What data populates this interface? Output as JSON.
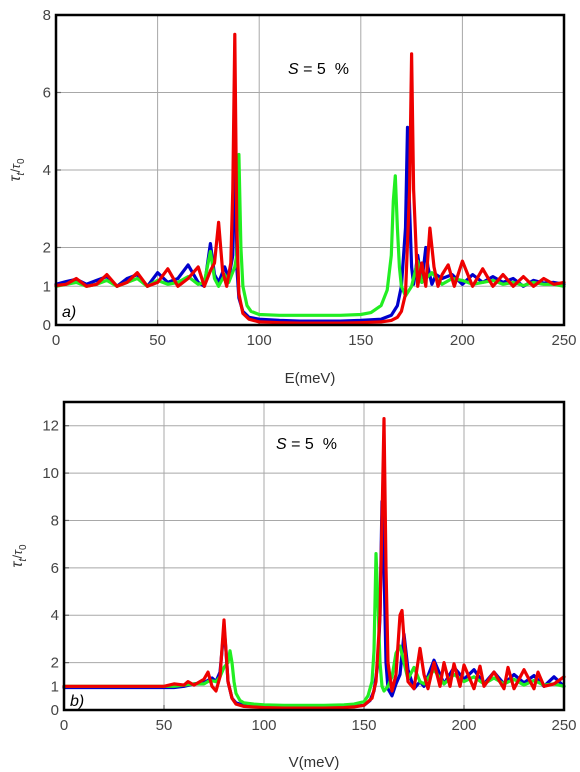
{
  "chart_data": [
    {
      "type": "line",
      "panel_label": "a)",
      "annotation": "S = 5  %",
      "annotation_parts": {
        "symbol": "S",
        "rest": " = 5  %"
      },
      "xlabel": "E(meV)",
      "ylabel_parts": {
        "main": "τ",
        "sub1": "t",
        "sep": "/",
        "main2": "τ",
        "sub2": "0"
      },
      "xlim": [
        0,
        250
      ],
      "ylim": [
        0,
        8
      ],
      "xticks": [
        0,
        50,
        100,
        150,
        200,
        250
      ],
      "yticks": [
        0,
        1,
        2,
        4,
        6,
        8
      ],
      "grid": true,
      "series": [
        {
          "color": "#0000cc",
          "x": [
            0,
            5,
            10,
            15,
            20,
            25,
            30,
            35,
            40,
            45,
            50,
            55,
            60,
            65,
            70,
            73,
            76,
            78,
            80,
            83,
            85,
            87,
            88,
            89,
            90,
            92,
            95,
            100,
            110,
            120,
            130,
            140,
            150,
            160,
            165,
            168,
            170,
            172,
            173,
            174,
            175,
            176,
            178,
            180,
            182,
            183,
            185,
            187,
            190,
            195,
            200,
            205,
            210,
            215,
            220,
            225,
            230,
            235,
            240,
            245,
            250
          ],
          "y": [
            1.05,
            1.12,
            1.18,
            1.05,
            1.15,
            1.25,
            1.0,
            1.2,
            1.3,
            1.0,
            1.35,
            1.1,
            1.2,
            1.55,
            1.1,
            1.0,
            2.1,
            1.3,
            1.1,
            1.5,
            1.2,
            1.8,
            5.5,
            1.5,
            0.7,
            0.35,
            0.2,
            0.15,
            0.12,
            0.1,
            0.1,
            0.1,
            0.12,
            0.15,
            0.25,
            0.5,
            1.0,
            2.5,
            5.1,
            3.0,
            1.5,
            1.05,
            1.8,
            1.1,
            2.0,
            1.5,
            1.05,
            1.3,
            1.2,
            1.3,
            1.05,
            1.3,
            1.1,
            1.25,
            1.1,
            1.2,
            1.0,
            1.15,
            1.08,
            1.1,
            1.05
          ]
        },
        {
          "color": "#22ee22",
          "x": [
            0,
            5,
            10,
            15,
            20,
            25,
            30,
            35,
            40,
            45,
            50,
            55,
            60,
            65,
            70,
            73,
            76,
            78,
            80,
            83,
            85,
            88,
            89,
            90,
            91,
            92,
            94,
            96,
            100,
            110,
            120,
            130,
            140,
            150,
            155,
            160,
            163,
            165,
            166,
            167,
            168,
            169,
            170,
            172,
            175,
            178,
            180,
            182,
            185,
            190,
            195,
            200,
            205,
            210,
            215,
            220,
            225,
            230,
            235,
            240,
            245,
            250
          ],
          "y": [
            1.0,
            1.05,
            1.1,
            1.0,
            1.05,
            1.15,
            1.0,
            1.1,
            1.2,
            1.0,
            1.15,
            1.05,
            1.1,
            1.25,
            1.05,
            1.1,
            1.9,
            1.2,
            1.0,
            1.3,
            1.1,
            1.5,
            1.8,
            4.4,
            2.0,
            1.0,
            0.5,
            0.35,
            0.27,
            0.25,
            0.25,
            0.25,
            0.25,
            0.27,
            0.32,
            0.5,
            0.9,
            1.8,
            3.2,
            3.85,
            2.5,
            1.5,
            1.0,
            0.75,
            1.0,
            1.65,
            1.1,
            1.2,
            1.35,
            1.05,
            1.2,
            1.15,
            1.05,
            1.1,
            1.15,
            1.05,
            1.1,
            1.02,
            1.1,
            1.05,
            1.05,
            1.0
          ]
        },
        {
          "color": "#ee0000",
          "x": [
            0,
            5,
            10,
            15,
            20,
            25,
            30,
            35,
            40,
            45,
            50,
            55,
            60,
            65,
            70,
            73,
            76,
            78,
            80,
            82,
            84,
            86,
            87,
            88,
            89,
            90,
            92,
            95,
            100,
            110,
            120,
            130,
            140,
            150,
            160,
            165,
            168,
            170,
            172,
            174,
            175,
            176,
            178,
            180,
            182,
            184,
            186,
            188,
            190,
            193,
            196,
            200,
            205,
            210,
            215,
            220,
            225,
            230,
            235,
            240,
            245,
            250
          ],
          "y": [
            1.02,
            1.05,
            1.2,
            1.0,
            1.05,
            1.3,
            1.0,
            1.1,
            1.35,
            1.0,
            1.1,
            1.45,
            1.0,
            1.2,
            1.5,
            1.0,
            1.4,
            1.6,
            2.65,
            1.4,
            1.0,
            1.6,
            3.5,
            7.5,
            2.5,
            0.8,
            0.3,
            0.15,
            0.08,
            0.06,
            0.05,
            0.05,
            0.05,
            0.06,
            0.08,
            0.12,
            0.2,
            0.35,
            0.8,
            3.5,
            7.0,
            3.5,
            1.0,
            1.6,
            1.0,
            2.5,
            1.5,
            1.0,
            1.3,
            1.55,
            1.0,
            1.65,
            1.0,
            1.45,
            1.0,
            1.3,
            1.0,
            1.25,
            1.0,
            1.2,
            1.05,
            1.1
          ]
        }
      ]
    },
    {
      "type": "line",
      "panel_label": "b)",
      "annotation": "S = 5  %",
      "annotation_parts": {
        "symbol": "S",
        "rest": " = 5  %"
      },
      "xlabel": "V(meV)",
      "ylabel_parts": {
        "main": "τ",
        "sub1": "t",
        "sep": "/",
        "main2": "τ",
        "sub2": "0"
      },
      "xlim": [
        0,
        250
      ],
      "ylim": [
        0,
        13
      ],
      "xticks": [
        0,
        50,
        100,
        150,
        200,
        250
      ],
      "yticks": [
        0,
        1,
        2,
        4,
        6,
        8,
        10,
        12
      ],
      "grid": true,
      "series": [
        {
          "color": "#0000cc",
          "x": [
            0,
            50,
            55,
            60,
            65,
            70,
            74,
            76,
            78,
            79,
            80,
            81,
            82,
            84,
            86,
            90,
            100,
            110,
            120,
            130,
            140,
            145,
            150,
            153,
            155,
            157,
            158,
            159,
            160,
            161,
            162,
            164,
            166,
            168,
            170,
            172,
            175,
            178,
            180,
            185,
            190,
            195,
            200,
            205,
            210,
            215,
            220,
            225,
            230,
            235,
            240,
            245,
            250
          ],
          "y": [
            0.95,
            0.95,
            0.95,
            1.0,
            1.1,
            1.15,
            1.35,
            1.2,
            1.6,
            2.5,
            3.5,
            2.5,
            1.2,
            0.5,
            0.3,
            0.2,
            0.15,
            0.13,
            0.12,
            0.12,
            0.13,
            0.15,
            0.2,
            0.4,
            0.8,
            2.0,
            4.0,
            8.8,
            6.0,
            2.0,
            0.9,
            0.6,
            1.1,
            1.5,
            3.2,
            1.7,
            0.9,
            1.2,
            1.0,
            2.1,
            1.1,
            1.8,
            1.3,
            1.7,
            1.1,
            1.6,
            1.1,
            1.5,
            1.15,
            1.45,
            1.0,
            1.4,
            1.0
          ]
        },
        {
          "color": "#22ee22",
          "x": [
            0,
            50,
            55,
            60,
            65,
            70,
            73,
            76,
            78,
            80,
            82,
            83,
            84,
            85,
            86,
            88,
            90,
            95,
            100,
            110,
            120,
            130,
            140,
            145,
            150,
            152,
            154,
            155,
            156,
            157,
            158,
            159,
            160,
            162,
            164,
            166,
            168,
            170,
            172,
            175,
            178,
            180,
            185,
            190,
            195,
            200,
            205,
            210,
            215,
            220,
            225,
            230,
            235,
            240,
            245,
            250
          ],
          "y": [
            1.0,
            1.0,
            1.0,
            1.05,
            1.1,
            1.1,
            1.25,
            1.2,
            1.4,
            1.8,
            2.0,
            2.5,
            2.0,
            1.2,
            0.7,
            0.4,
            0.3,
            0.25,
            0.22,
            0.2,
            0.2,
            0.2,
            0.22,
            0.25,
            0.35,
            0.6,
            1.2,
            2.5,
            6.6,
            4.5,
            2.0,
            1.0,
            0.8,
            1.0,
            1.4,
            2.4,
            2.7,
            2.0,
            1.3,
            1.8,
            1.2,
            1.1,
            1.7,
            1.1,
            1.5,
            1.2,
            1.4,
            1.1,
            1.35,
            1.1,
            1.3,
            1.05,
            1.25,
            1.05,
            1.1,
            1.0
          ]
        },
        {
          "color": "#ee0000",
          "x": [
            0,
            50,
            55,
            60,
            62,
            65,
            70,
            72,
            74,
            76,
            78,
            80,
            81,
            82,
            84,
            86,
            90,
            100,
            110,
            120,
            130,
            140,
            145,
            150,
            154,
            156,
            158,
            159,
            160,
            161,
            162,
            164,
            166,
            168,
            169,
            170,
            172,
            175,
            178,
            180,
            182,
            185,
            188,
            190,
            193,
            195,
            198,
            200,
            205,
            208,
            210,
            215,
            220,
            222,
            225,
            230,
            235,
            237,
            240,
            245,
            250
          ],
          "y": [
            1.0,
            1.0,
            1.1,
            1.05,
            1.2,
            1.05,
            1.3,
            1.6,
            1.0,
            0.8,
            1.4,
            3.8,
            2.5,
            1.2,
            0.5,
            0.25,
            0.15,
            0.1,
            0.08,
            0.08,
            0.08,
            0.1,
            0.13,
            0.2,
            0.5,
            1.2,
            4.0,
            8.0,
            12.3,
            6.0,
            2.0,
            0.8,
            1.5,
            4.0,
            4.2,
            3.0,
            1.2,
            0.9,
            2.6,
            1.5,
            0.9,
            2.0,
            1.0,
            2.0,
            1.0,
            1.95,
            1.0,
            1.9,
            0.9,
            1.85,
            1.0,
            1.6,
            0.9,
            1.8,
            0.9,
            1.7,
            0.9,
            1.6,
            1.0,
            1.1,
            1.4
          ]
        }
      ]
    }
  ]
}
